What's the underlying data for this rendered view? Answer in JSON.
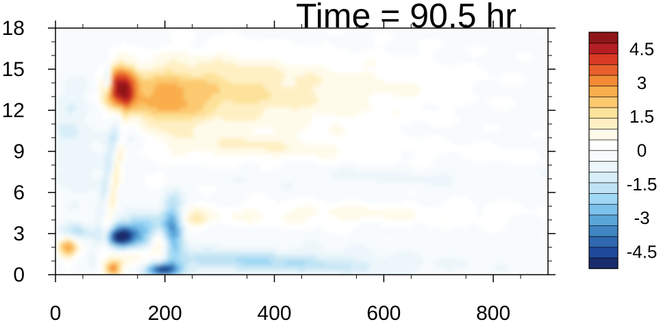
{
  "chart_data": {
    "type": "heatmap",
    "title": "Time = 90.5 hr",
    "xlabel": "",
    "ylabel": "",
    "xlim": [
      0,
      900
    ],
    "ylim": [
      0,
      18
    ],
    "x_ticks": [
      "0",
      "200",
      "400",
      "600",
      "800"
    ],
    "y_ticks": [
      "0",
      "3",
      "6",
      "9",
      "12",
      "15",
      "18"
    ],
    "colorbar": {
      "levels": [
        -5.25,
        -4.75,
        -4.25,
        -3.75,
        -3.25,
        -2.75,
        -2.25,
        -1.75,
        -1.25,
        -0.75,
        -0.25,
        0.25,
        0.75,
        1.25,
        1.75,
        2.25,
        2.75,
        3.25,
        3.75,
        4.25,
        4.75,
        5.25
      ],
      "colors": [
        "#1a2c6b",
        "#1f4a9b",
        "#2f68b0",
        "#3f86c2",
        "#5aa5d8",
        "#7cc1ec",
        "#9fd8f5",
        "#bfe3f4",
        "#d8eef8",
        "#ecf6fb",
        "#f7fbfd",
        "#ffffff",
        "#fffbea",
        "#fff0c4",
        "#fde29a",
        "#fcc96f",
        "#f9ad4b",
        "#f38b36",
        "#e8602b",
        "#d83a23",
        "#b51f23",
        "#8e1618"
      ],
      "tick_labels": [
        "4.5",
        "3",
        "1.5",
        "0",
        "-1.5",
        "-3",
        "-4.5"
      ]
    },
    "features": [
      {
        "region": "upper warm anomaly",
        "x_range": [
          90,
          700
        ],
        "y_range": [
          8,
          17
        ],
        "peak_value": 5.0,
        "peak_location": [
          115,
          13.5
        ]
      },
      {
        "region": "mid-level warm band",
        "x_range": [
          230,
          900
        ],
        "y_range": [
          3,
          5
        ],
        "value": 1.0
      },
      {
        "region": "mid-level cold anomaly",
        "x_range": [
          90,
          260
        ],
        "y_range": [
          1.5,
          6
        ],
        "peak_value": -4.5,
        "peak_location": [
          120,
          2.8
        ]
      },
      {
        "region": "low-level warm patches",
        "x_range": [
          0,
          240
        ],
        "y_range": [
          0,
          3
        ],
        "peak_value": 3.5
      },
      {
        "region": "near-surface cold band",
        "x_range": [
          170,
          600
        ],
        "y_range": [
          0,
          1.5
        ],
        "peak_value": -4.0
      }
    ]
  }
}
